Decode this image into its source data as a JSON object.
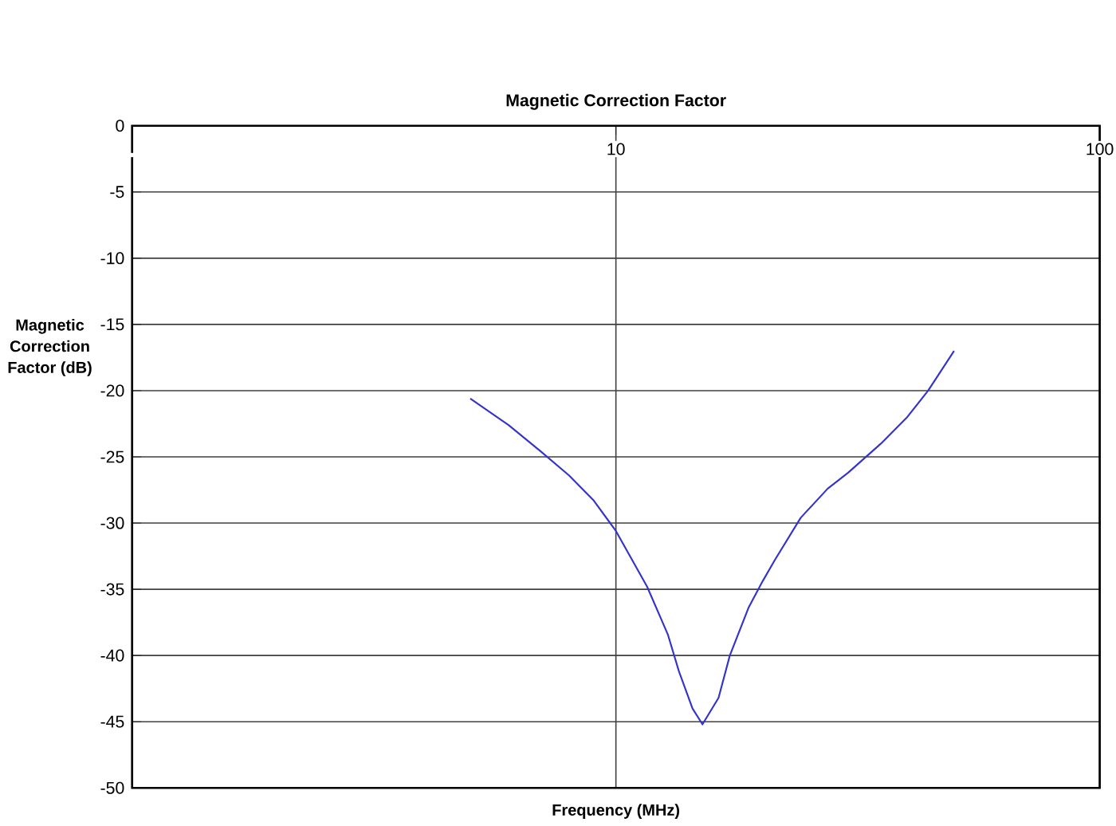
{
  "chart_data": {
    "type": "line",
    "title": "Magnetic Correction Factor",
    "xlabel": "Frequency (MHz)",
    "ylabel": "Magnetic\nCorrection\nFactor (dB)",
    "log": "x",
    "grid": true,
    "marker": "none",
    "line_style": "solid",
    "xlim": [
      1,
      100
    ],
    "xticks": [
      {
        "value": 1,
        "label": null
      },
      10,
      100
    ],
    "ylim": [
      -50,
      0
    ],
    "yticks": [
      -50,
      -45,
      -40,
      -35,
      -30,
      -25,
      -20,
      -15,
      -10,
      -5,
      0
    ],
    "series": [
      {
        "color": "#3333cc",
        "x": [
          5.0,
          6.0,
          7.0,
          8.0,
          9.0,
          10.0,
          11.6,
          12.8,
          13.5,
          14.4,
          15.1,
          16.3,
          17.2,
          18.8,
          20.1,
          21.3,
          24.1,
          27.4,
          30.2,
          35.3,
          40,
          44.2,
          50
        ],
        "values": [
          -20.6,
          -22.6,
          -24.6,
          -26.4,
          -28.3,
          -30.6,
          -34.8,
          -38.4,
          -41.2,
          -44.0,
          -45.2,
          -43.2,
          -40.0,
          -36.4,
          -34.4,
          -32.8,
          -29.6,
          -27.4,
          -26.2,
          -24.0,
          -22.0,
          -20.0,
          -17.0
        ]
      }
    ]
  }
}
